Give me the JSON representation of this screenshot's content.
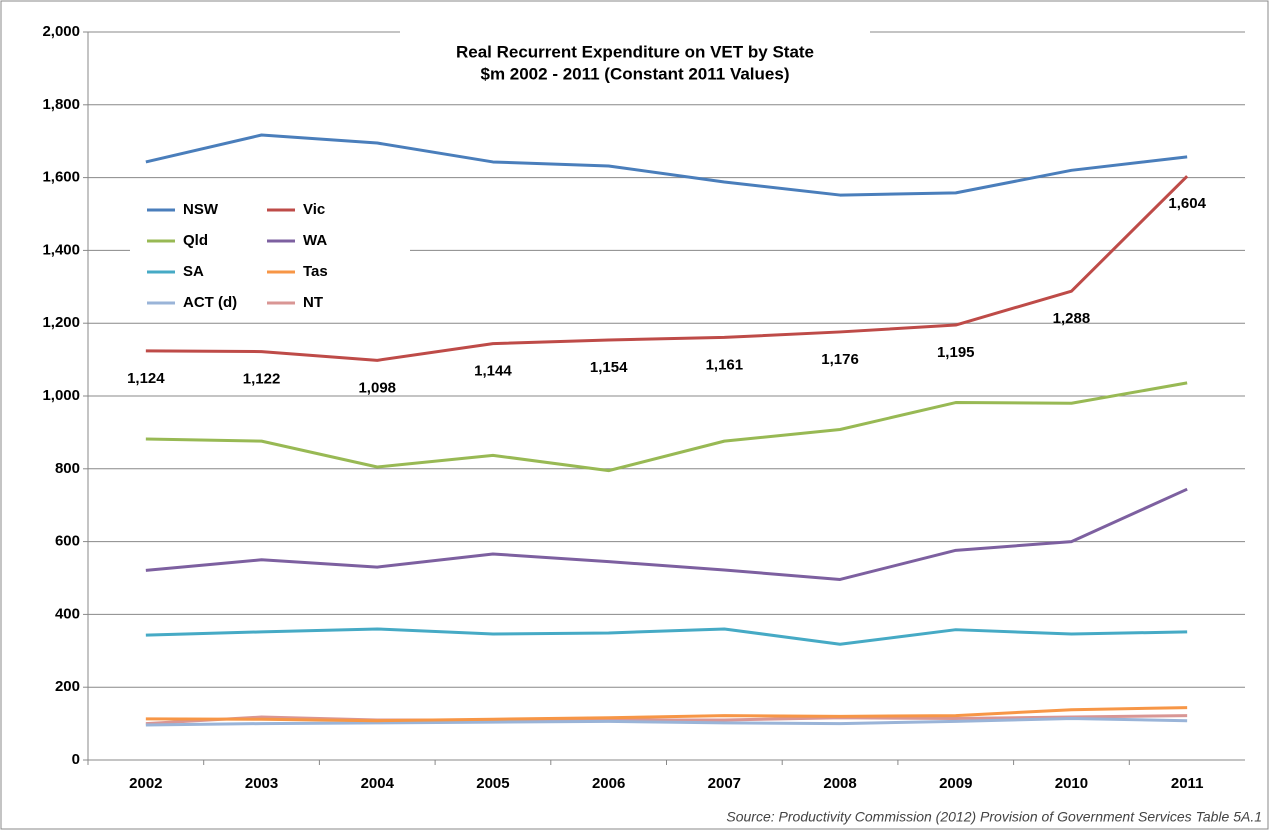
{
  "chart_data": {
    "type": "line",
    "title": "Real Recurrent Expenditure on VET by State",
    "subtitle": "$m 2002 - 2011 (Constant 2011 Values)",
    "source": "Source:  Productivity Commission (2012) Provision of Government Services Table 5A.1",
    "categories": [
      "2002",
      "2003",
      "2004",
      "2005",
      "2006",
      "2007",
      "2008",
      "2009",
      "2010",
      "2011"
    ],
    "series": [
      {
        "name": "NSW",
        "color": "#4a7ebb",
        "values": [
          1643,
          1717,
          1695,
          1643,
          1632,
          1588,
          1552,
          1558,
          1620,
          1657
        ]
      },
      {
        "name": "Vic",
        "color": "#be4b48",
        "values": [
          1124,
          1122,
          1098,
          1144,
          1154,
          1161,
          1176,
          1195,
          1288,
          1604
        ],
        "value_labels": [
          "1,124",
          "1,122",
          "1,098",
          "1,144",
          "1,154",
          "1,161",
          "1,176",
          "1,195",
          "1,288",
          "1,604"
        ]
      },
      {
        "name": "Qld",
        "color": "#98b954",
        "values": [
          882,
          876,
          805,
          837,
          795,
          876,
          908,
          982,
          980,
          1036
        ]
      },
      {
        "name": "WA",
        "color": "#7d60a0",
        "values": [
          521,
          550,
          530,
          566,
          545,
          522,
          496,
          576,
          600,
          744
        ]
      },
      {
        "name": "SA",
        "color": "#46aac5",
        "values": [
          343,
          352,
          360,
          346,
          349,
          360,
          318,
          358,
          346,
          352
        ]
      },
      {
        "name": "Tas",
        "color": "#f79646",
        "values": [
          113,
          112,
          108,
          112,
          116,
          122,
          120,
          122,
          138,
          144
        ]
      },
      {
        "name": "ACT (d)",
        "color": "#9ab4d8",
        "values": [
          96,
          100,
          102,
          104,
          106,
          102,
          100,
          106,
          114,
          108
        ]
      },
      {
        "name": "NT",
        "color": "#d99694",
        "values": [
          100,
          118,
          110,
          110,
          110,
          110,
          116,
          114,
          118,
          122
        ]
      }
    ],
    "ylim": [
      0,
      2000
    ],
    "yticks": [
      0,
      200,
      400,
      600,
      800,
      {
        "value": 1000,
        "label": "1,000"
      },
      {
        "value": 1200,
        "label": "1,200"
      },
      {
        "value": 1400,
        "label": "1,400"
      },
      {
        "value": 1600,
        "label": "1,600"
      },
      {
        "value": 1800,
        "label": "1,800"
      },
      {
        "value": 2000,
        "label": "2,000"
      }
    ],
    "grid": true,
    "legend": "upper left"
  }
}
